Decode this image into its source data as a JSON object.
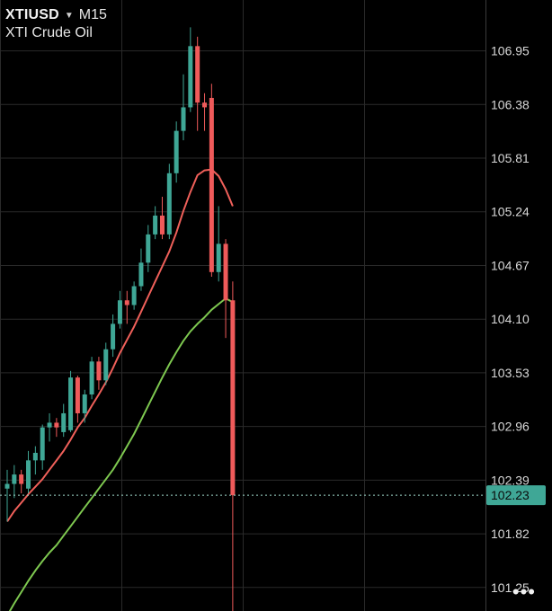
{
  "header": {
    "symbol": "XTIUSD",
    "timeframe": "M15",
    "instrument_name": "XTI Crude Oil",
    "dropdown_icon": "caret-down-icon"
  },
  "more_icon": "more-dots-icon",
  "more_glyph": "•••",
  "colors": {
    "background": "#000000",
    "grid": "#2a2a2a",
    "bull": "#3fa796",
    "bear": "#ef5a5a",
    "ma_fast": "#f0605a",
    "ma_slow": "#7ec850",
    "last_price_bg": "#3fa796"
  },
  "chart_data": {
    "type": "candlestick",
    "symbol": "XTIUSD",
    "timeframe": "M15",
    "y_ticks": [
      "106.95",
      "106.38",
      "105.81",
      "105.24",
      "104.67",
      "104.10",
      "103.53",
      "102.96",
      "102.39",
      "101.82",
      "101.25"
    ],
    "ylim": [
      101.0,
      107.49
    ],
    "grid": true,
    "last_price": 102.23,
    "last_price_label": "102.23",
    "candles": [
      {
        "o": 102.3,
        "h": 102.5,
        "l": 101.95,
        "c": 102.35
      },
      {
        "o": 102.35,
        "h": 102.55,
        "l": 102.2,
        "c": 102.45
      },
      {
        "o": 102.45,
        "h": 102.5,
        "l": 102.25,
        "c": 102.35
      },
      {
        "o": 102.3,
        "h": 102.7,
        "l": 102.25,
        "c": 102.6
      },
      {
        "o": 102.6,
        "h": 102.75,
        "l": 102.45,
        "c": 102.68
      },
      {
        "o": 102.6,
        "h": 102.98,
        "l": 102.5,
        "c": 102.95
      },
      {
        "o": 102.95,
        "h": 103.1,
        "l": 102.8,
        "c": 103.0
      },
      {
        "o": 103.0,
        "h": 103.05,
        "l": 102.85,
        "c": 102.95
      },
      {
        "o": 102.9,
        "h": 103.2,
        "l": 102.85,
        "c": 103.1
      },
      {
        "o": 102.92,
        "h": 103.55,
        "l": 102.9,
        "c": 103.48
      },
      {
        "o": 103.48,
        "h": 103.5,
        "l": 103.0,
        "c": 103.1
      },
      {
        "o": 103.1,
        "h": 103.35,
        "l": 103.0,
        "c": 103.3
      },
      {
        "o": 103.3,
        "h": 103.7,
        "l": 103.25,
        "c": 103.65
      },
      {
        "o": 103.65,
        "h": 103.7,
        "l": 103.35,
        "c": 103.45
      },
      {
        "o": 103.45,
        "h": 103.85,
        "l": 103.4,
        "c": 103.78
      },
      {
        "o": 103.78,
        "h": 104.15,
        "l": 103.7,
        "c": 104.05
      },
      {
        "o": 104.05,
        "h": 104.4,
        "l": 104.0,
        "c": 104.3
      },
      {
        "o": 104.3,
        "h": 104.4,
        "l": 104.05,
        "c": 104.25
      },
      {
        "o": 104.25,
        "h": 104.5,
        "l": 104.2,
        "c": 104.45
      },
      {
        "o": 104.45,
        "h": 104.85,
        "l": 104.4,
        "c": 104.7
      },
      {
        "o": 104.7,
        "h": 105.1,
        "l": 104.6,
        "c": 105.0
      },
      {
        "o": 105.0,
        "h": 105.3,
        "l": 104.95,
        "c": 105.2
      },
      {
        "o": 105.2,
        "h": 105.4,
        "l": 104.95,
        "c": 105.0
      },
      {
        "o": 105.0,
        "h": 105.75,
        "l": 104.95,
        "c": 105.65
      },
      {
        "o": 105.65,
        "h": 106.2,
        "l": 105.55,
        "c": 106.1
      },
      {
        "o": 106.1,
        "h": 106.7,
        "l": 106.0,
        "c": 106.35
      },
      {
        "o": 106.35,
        "h": 107.2,
        "l": 106.3,
        "c": 107.0
      },
      {
        "o": 107.0,
        "h": 107.1,
        "l": 106.1,
        "c": 106.4
      },
      {
        "o": 106.4,
        "h": 106.5,
        "l": 106.1,
        "c": 106.35
      },
      {
        "o": 106.45,
        "h": 106.6,
        "l": 104.55,
        "c": 104.6
      },
      {
        "o": 104.6,
        "h": 105.3,
        "l": 104.5,
        "c": 104.9
      },
      {
        "o": 104.9,
        "h": 104.95,
        "l": 103.9,
        "c": 104.3
      },
      {
        "o": 104.3,
        "h": 104.5,
        "l": 100.9,
        "c": 102.23
      }
    ],
    "series": [
      {
        "values": [
          101.95,
          102.06,
          102.15,
          102.24,
          102.32,
          102.4,
          102.5,
          102.6,
          102.7,
          102.82,
          102.95,
          103.05,
          103.18,
          103.3,
          103.43,
          103.58,
          103.74,
          103.88,
          104.02,
          104.18,
          104.34,
          104.5,
          104.66,
          104.82,
          105.02,
          105.25,
          105.45,
          105.63,
          105.68,
          105.69,
          105.62,
          105.48,
          105.3
        ]
      },
      {
        "values": [
          100.95,
          101.08,
          101.2,
          101.32,
          101.43,
          101.53,
          101.62,
          101.7,
          101.8,
          101.9,
          102.0,
          102.1,
          102.2,
          102.3,
          102.4,
          102.5,
          102.62,
          102.75,
          102.88,
          103.03,
          103.18,
          103.33,
          103.48,
          103.62,
          103.75,
          103.87,
          103.97,
          104.05,
          104.12,
          104.2,
          104.26,
          104.32,
          104.28
        ]
      }
    ]
  }
}
